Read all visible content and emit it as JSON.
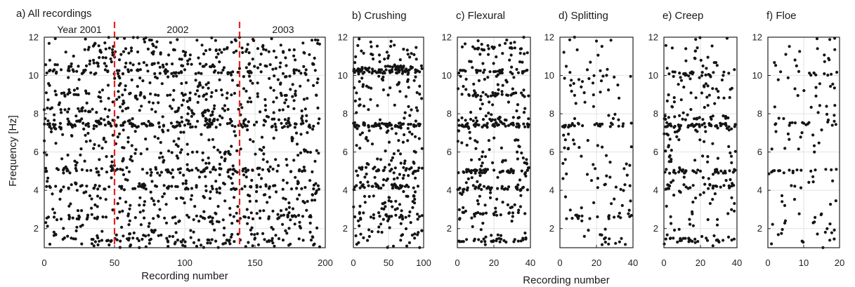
{
  "figure": {
    "ylabel": "Frequency [Hz]",
    "xlabel_a": "Recording number",
    "xlabel_shared": "Recording number"
  },
  "chart_data": [
    {
      "type": "scatter",
      "title": "a) All recordings",
      "xlabel": "Recording number",
      "ylabel": "Frequency [Hz]",
      "xlim": [
        0,
        200
      ],
      "ylim": [
        1,
        12
      ],
      "xticks": [
        0,
        50,
        100,
        150,
        200
      ],
      "yticks": [
        2,
        4,
        6,
        8,
        10,
        12
      ],
      "grid": true,
      "year_separators": [
        50,
        139
      ],
      "year_labels": [
        {
          "text": "Year 2001",
          "x": 25
        },
        {
          "text": "2002",
          "x": 95
        },
        {
          "text": "2003",
          "x": 170
        }
      ],
      "bands": [
        [
          1.4,
          0.45
        ],
        [
          2.6,
          0.5
        ],
        [
          4.15,
          0.7
        ],
        [
          5.05,
          0.8
        ],
        [
          7.4,
          1.0
        ],
        [
          7.65,
          0.5
        ],
        [
          8.2,
          0.4
        ],
        [
          9.0,
          0.4
        ],
        [
          10.2,
          0.8
        ],
        [
          10.55,
          0.4
        ],
        [
          11.3,
          0.3
        ]
      ],
      "points": [
        [
          3,
          2.6
        ],
        [
          7,
          2.6
        ],
        [
          12,
          2.5
        ],
        [
          18,
          2.6
        ],
        [
          25,
          2.6
        ],
        [
          31,
          2.7
        ],
        [
          38,
          2.6
        ],
        [
          44,
          2.6
        ],
        [
          60,
          1.4
        ],
        [
          75,
          1.4
        ],
        [
          95,
          1.4
        ],
        [
          110,
          1.4
        ],
        [
          130,
          1.4
        ],
        [
          150,
          1.5
        ],
        [
          170,
          1.4
        ],
        [
          190,
          1.4
        ],
        [
          55,
          4.1
        ],
        [
          80,
          4.2
        ],
        [
          105,
          4.1
        ],
        [
          125,
          4.1
        ],
        [
          160,
          4.1
        ],
        [
          52,
          5.1
        ],
        [
          70,
          5.1
        ],
        [
          102,
          5.1
        ],
        [
          120,
          5.1
        ],
        [
          136,
          5.0
        ],
        [
          160,
          5.0
        ],
        [
          20,
          7.4
        ],
        [
          40,
          7.5
        ],
        [
          56,
          7.4
        ],
        [
          85,
          7.4
        ],
        [
          100,
          7.4
        ],
        [
          118,
          7.4
        ],
        [
          140,
          7.4
        ],
        [
          175,
          7.4
        ],
        [
          195,
          7.5
        ],
        [
          12,
          10.3
        ],
        [
          30,
          10.5
        ],
        [
          60,
          10.2
        ],
        [
          100,
          10.3
        ],
        [
          120,
          10.5
        ],
        [
          145,
          10.2
        ],
        [
          170,
          10.1
        ],
        [
          115,
          11.3
        ],
        [
          130,
          11.4
        ],
        [
          58,
          11.4
        ]
      ],
      "n_random": 900,
      "n_band": 520
    },
    {
      "type": "scatter",
      "title": "b) Crushing",
      "xlim": [
        0,
        100
      ],
      "ylim": [
        1,
        12
      ],
      "xticks": [
        0,
        50,
        100
      ],
      "yticks": [
        2,
        4,
        6,
        8,
        10,
        12
      ],
      "grid": true,
      "bands": [
        [
          2.6,
          0.3
        ],
        [
          4.2,
          0.6
        ],
        [
          5.1,
          0.5
        ],
        [
          7.4,
          1.0
        ],
        [
          10.2,
          1.0
        ],
        [
          10.4,
          0.6
        ]
      ],
      "points": [
        [
          40,
          10.3
        ],
        [
          55,
          10.2
        ],
        [
          35,
          7.4
        ],
        [
          65,
          7.5
        ],
        [
          25,
          2.6
        ],
        [
          70,
          2.5
        ]
      ],
      "n_random": 260,
      "n_band": 200
    },
    {
      "type": "scatter",
      "title": "c) Flexural",
      "xlim": [
        0,
        40
      ],
      "ylim": [
        1,
        12
      ],
      "xticks": [
        0,
        20,
        40
      ],
      "yticks": [
        2,
        4,
        6,
        8,
        10,
        12
      ],
      "grid": true,
      "bands": [
        [
          1.4,
          0.6
        ],
        [
          2.8,
          0.4
        ],
        [
          4.1,
          0.8
        ],
        [
          5.0,
          1.0
        ],
        [
          7.4,
          1.0
        ],
        [
          7.7,
          0.5
        ],
        [
          9.0,
          0.6
        ],
        [
          10.2,
          0.6
        ],
        [
          11.4,
          0.3
        ]
      ],
      "points": [
        [
          10,
          5.0
        ],
        [
          25,
          5.0
        ],
        [
          15,
          7.4
        ],
        [
          30,
          7.5
        ],
        [
          20,
          10.2
        ],
        [
          35,
          11.4
        ]
      ],
      "n_random": 200,
      "n_band": 230
    },
    {
      "type": "scatter",
      "title": "d) Splitting",
      "xlim": [
        0,
        40
      ],
      "ylim": [
        1,
        12
      ],
      "xticks": [
        0,
        20,
        40
      ],
      "yticks": [
        2,
        4,
        6,
        8,
        10,
        12
      ],
      "grid": true,
      "bands": [
        [
          7.4,
          0.5
        ],
        [
          2.6,
          0.4
        ]
      ],
      "points": [
        [
          5,
          7.4
        ],
        [
          10,
          7.5
        ],
        [
          15,
          10.3
        ],
        [
          8,
          12.0
        ],
        [
          20,
          11.8
        ],
        [
          12,
          2.4
        ]
      ],
      "n_random": 110,
      "n_band": 40
    },
    {
      "type": "scatter",
      "title": "e) Creep",
      "xlim": [
        0,
        40
      ],
      "ylim": [
        1,
        12
      ],
      "xticks": [
        0,
        20,
        40
      ],
      "yticks": [
        2,
        4,
        6,
        8,
        10,
        12
      ],
      "grid": true,
      "bands": [
        [
          1.4,
          0.7
        ],
        [
          4.2,
          0.6
        ],
        [
          5.0,
          1.0
        ],
        [
          7.4,
          0.9
        ],
        [
          7.8,
          0.6
        ],
        [
          10.1,
          0.6
        ]
      ],
      "points": [
        [
          10,
          5.0
        ],
        [
          20,
          5.0
        ],
        [
          15,
          7.4
        ],
        [
          25,
          7.4
        ],
        [
          12,
          11.4
        ]
      ],
      "n_random": 170,
      "n_band": 150
    },
    {
      "type": "scatter",
      "title": "f) Floe",
      "xlim": [
        0,
        20
      ],
      "ylim": [
        1,
        12
      ],
      "xticks": [
        0,
        10,
        20
      ],
      "yticks": [
        2,
        4,
        6,
        8,
        10,
        12
      ],
      "grid": true,
      "bands": [
        [
          7.5,
          0.5
        ],
        [
          5.0,
          0.5
        ],
        [
          10.1,
          0.4
        ]
      ],
      "points": [
        [
          5,
          11.1
        ],
        [
          8,
          10.5
        ],
        [
          10,
          7.5
        ],
        [
          12,
          5.0
        ],
        [
          1,
          1.2
        ]
      ],
      "n_random": 90,
      "n_band": 35
    }
  ]
}
